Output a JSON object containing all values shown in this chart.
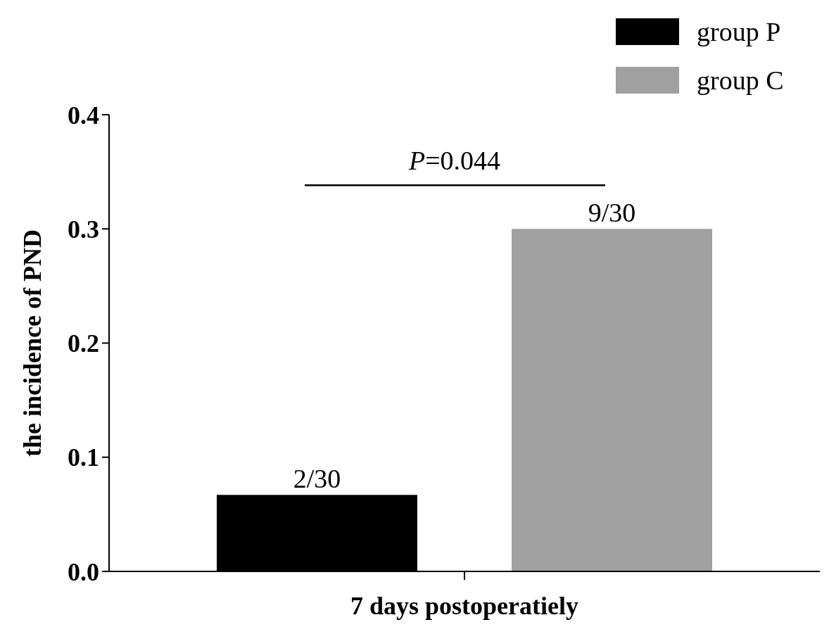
{
  "chart_data": {
    "type": "bar",
    "categories": [
      "7 days postoperatiely"
    ],
    "ylabel": "the incidence of PND",
    "series": [
      {
        "name": "group P",
        "color": "#000000",
        "values": [
          0.067
        ],
        "value_labels": [
          "2/30"
        ]
      },
      {
        "name": "group C",
        "color": "#a0a0a0",
        "values": [
          0.3
        ],
        "value_labels": [
          "9/30"
        ]
      }
    ],
    "ylim": [
      0,
      0.4
    ],
    "yticks": [
      {
        "value": 0,
        "label": "0.0"
      },
      0.1,
      0.2,
      0.3,
      0.4
    ],
    "annotations": [
      "P=0.044"
    ],
    "legend": "top right",
    "grid": false
  }
}
